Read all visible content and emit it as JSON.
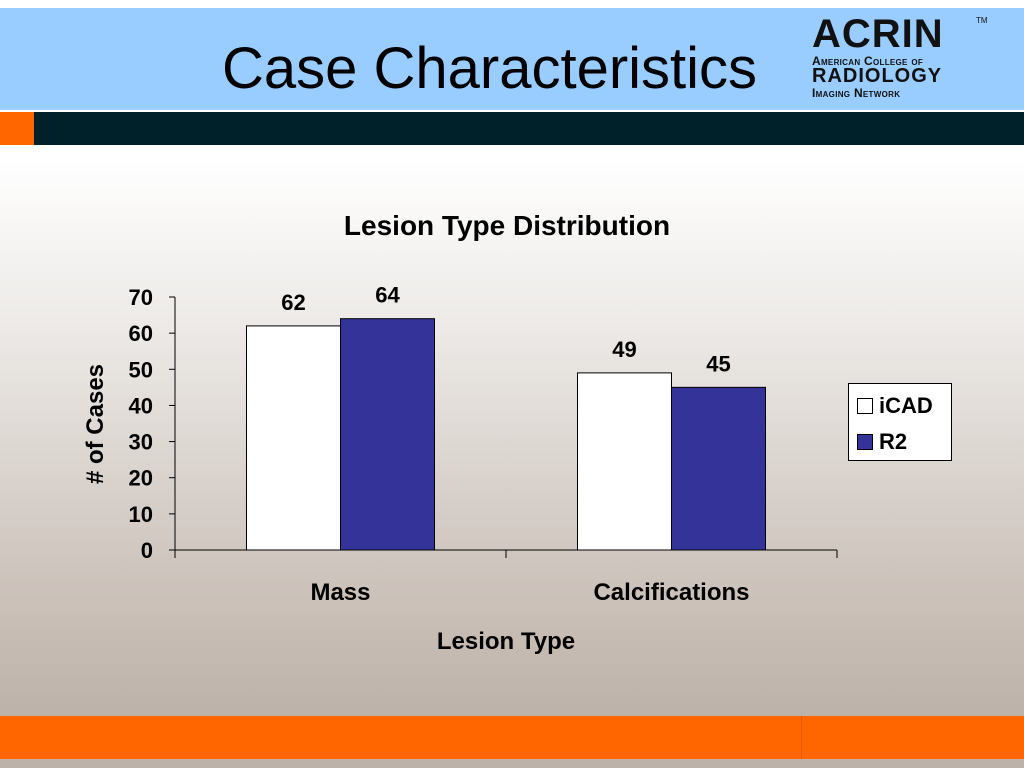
{
  "slide": {
    "title": "Case Characteristics",
    "logo": {
      "main": "ACRIN",
      "tm": "TM",
      "line1": "American College of",
      "line2": "RADIOLOGY",
      "line3": "Imaging Network"
    },
    "colors": {
      "header": "#99ccff",
      "accent": "#ff6600",
      "dark_bar": "#00202a"
    }
  },
  "chart_data": {
    "type": "bar",
    "title": "Lesion Type Distribution",
    "xlabel": "Lesion Type",
    "ylabel": "# of Cases",
    "categories": [
      "Mass",
      "Calcifications"
    ],
    "series": [
      {
        "name": "iCAD",
        "values": [
          62,
          49
        ],
        "color": "#ffffff"
      },
      {
        "name": "R2",
        "values": [
          64,
          45
        ],
        "color": "#333399"
      }
    ],
    "ylim": [
      0,
      70
    ],
    "yticks": [
      0,
      10,
      20,
      30,
      40,
      50,
      60,
      70
    ],
    "data_labels": true,
    "grid": false,
    "legend": "right"
  }
}
